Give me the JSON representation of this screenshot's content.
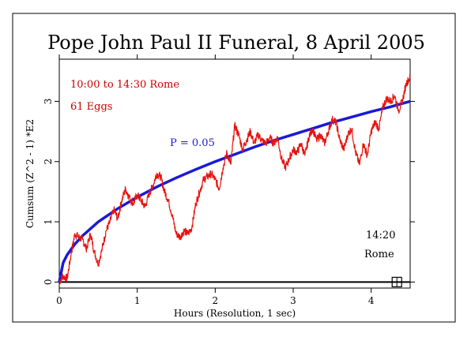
{
  "chart_data": {
    "type": "line",
    "title": "Pope John Paul II Funeral, 8 April 2005",
    "xlabel": "Hours (Resolution, 1 sec)",
    "ylabel": "Cumsum (Z^2 - 1) *E2",
    "xlim": [
      0,
      4.5
    ],
    "ylim": [
      -0.1,
      3.7
    ],
    "grid": false,
    "x_ticks": [
      0,
      1,
      2,
      3,
      4
    ],
    "y_ticks": [
      0,
      1,
      2,
      3
    ],
    "annotations": {
      "time_range": "10:00 to 14:30 Rome",
      "eggs": "61 Eggs",
      "probability": "P = 0.05",
      "marker_time": "14:20",
      "marker_place": "Rome"
    },
    "marker": {
      "x": 4.33,
      "y": 0
    },
    "colors": {
      "data": "#e8130f",
      "probability": "#1a1ad6",
      "annotation": "#cc0000",
      "axis": "#000000"
    },
    "series": [
      {
        "x": [
          0,
          0.05,
          0.1,
          0.15,
          0.2,
          0.25,
          0.3,
          0.35,
          0.4,
          0.45,
          0.5,
          0.55,
          0.6,
          0.65,
          0.7,
          0.75,
          0.8,
          0.85,
          0.9,
          0.95,
          1.0,
          1.05,
          1.1,
          1.15,
          1.2,
          1.25,
          1.3,
          1.35,
          1.4,
          1.45,
          1.5,
          1.55,
          1.6,
          1.65,
          1.7,
          1.75,
          1.8,
          1.85,
          1.9,
          1.95,
          2.0,
          2.05,
          2.1,
          2.15,
          2.2,
          2.25,
          2.3,
          2.35,
          2.4,
          2.45,
          2.5,
          2.55,
          2.6,
          2.65,
          2.7,
          2.75,
          2.8,
          2.85,
          2.9,
          2.95,
          3.0,
          3.05,
          3.1,
          3.15,
          3.2,
          3.25,
          3.3,
          3.35,
          3.4,
          3.45,
          3.5,
          3.55,
          3.6,
          3.65,
          3.7,
          3.75,
          3.8,
          3.85,
          3.9,
          3.95,
          4.0,
          4.05,
          4.1,
          4.15,
          4.2,
          4.25,
          4.3,
          4.35,
          4.4,
          4.45,
          4.5
        ],
        "y": [
          0.0,
          0.1,
          0.05,
          0.45,
          0.8,
          0.75,
          0.7,
          0.55,
          0.8,
          0.5,
          0.3,
          0.55,
          0.85,
          1.0,
          1.2,
          1.05,
          1.35,
          1.55,
          1.4,
          1.3,
          1.45,
          1.35,
          1.25,
          1.45,
          1.6,
          1.8,
          1.75,
          1.5,
          1.35,
          1.1,
          0.8,
          0.75,
          0.85,
          0.8,
          0.9,
          1.3,
          1.5,
          1.7,
          1.75,
          1.8,
          1.7,
          1.55,
          1.9,
          2.15,
          1.95,
          2.6,
          2.45,
          2.2,
          2.35,
          2.5,
          2.3,
          2.45,
          2.35,
          2.3,
          2.4,
          2.3,
          2.4,
          2.05,
          1.9,
          2.05,
          2.2,
          2.15,
          2.3,
          2.1,
          2.4,
          2.55,
          2.35,
          2.45,
          2.3,
          2.5,
          2.7,
          2.65,
          2.35,
          2.2,
          2.45,
          2.55,
          2.15,
          1.95,
          2.3,
          2.1,
          2.5,
          2.65,
          2.55,
          2.9,
          3.05,
          3.0,
          3.1,
          2.85,
          3.0,
          3.3,
          3.4
        ]
      }
    ],
    "p05_curve": {
      "label": "P = 0.05",
      "x": [
        0,
        0.05,
        0.1,
        0.2,
        0.3,
        0.5,
        0.75,
        1.0,
        1.25,
        1.5,
        1.75,
        2.0,
        2.25,
        2.5,
        2.75,
        3.0,
        3.25,
        3.5,
        3.75,
        4.0,
        4.25,
        4.5
      ],
      "y": [
        0.0,
        0.32,
        0.45,
        0.63,
        0.77,
        1.0,
        1.22,
        1.41,
        1.58,
        1.73,
        1.87,
        2.0,
        2.12,
        2.24,
        2.35,
        2.45,
        2.55,
        2.65,
        2.74,
        2.83,
        2.91,
        3.0
      ]
    }
  }
}
